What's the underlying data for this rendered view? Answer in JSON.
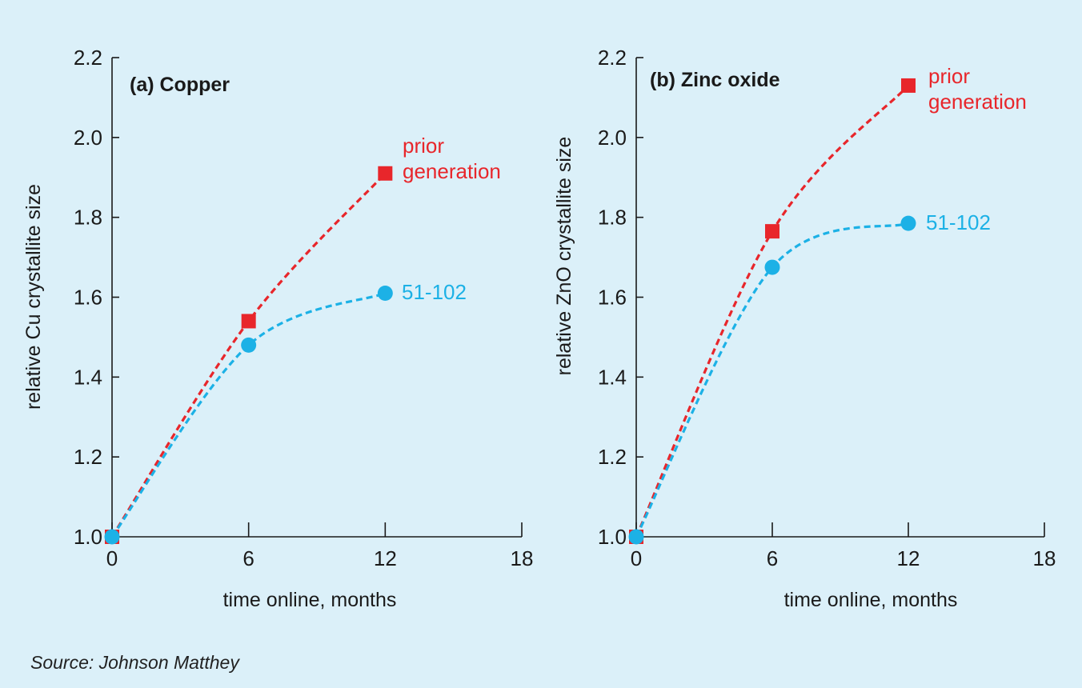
{
  "source": "Source: Johnson Matthey",
  "colors": {
    "prior": "#e8262b",
    "new": "#1cb1e6",
    "background": "#dbf0f9",
    "axis": "#1a1a1a"
  },
  "chart_data": [
    {
      "type": "line",
      "title": "(a) Copper",
      "xlabel": "time online, months",
      "ylabel": "relative Cu crystallite size",
      "xlim": [
        0,
        18
      ],
      "ylim": [
        1.0,
        2.2
      ],
      "xticks": [
        "0",
        "6",
        "12",
        "18"
      ],
      "yticks": [
        "1.0",
        "1.2",
        "1.4",
        "1.6",
        "1.8",
        "2.0",
        "2.2"
      ],
      "series": [
        {
          "name": "prior generation",
          "name_lines": [
            "prior",
            "generation"
          ],
          "marker": "square",
          "color": "#e8262b",
          "x": [
            0,
            6,
            12
          ],
          "y": [
            1.0,
            1.54,
            1.91
          ]
        },
        {
          "name": "51-102",
          "name_lines": [
            "51-102"
          ],
          "marker": "circle",
          "color": "#1cb1e6",
          "x": [
            0,
            6,
            12
          ],
          "y": [
            1.0,
            1.48,
            1.61
          ]
        }
      ]
    },
    {
      "type": "line",
      "title": "(b) Zinc oxide",
      "xlabel": "time online, months",
      "ylabel": "relative ZnO crystallite size",
      "xlim": [
        0,
        18
      ],
      "ylim": [
        1.0,
        2.2
      ],
      "xticks": [
        "0",
        "6",
        "12",
        "18"
      ],
      "yticks": [
        "1.0",
        "1.2",
        "1.4",
        "1.6",
        "1.8",
        "2.0",
        "2.2"
      ],
      "series": [
        {
          "name": "prior generation",
          "name_lines": [
            "prior",
            "generation"
          ],
          "marker": "square",
          "color": "#e8262b",
          "x": [
            0,
            6,
            12
          ],
          "y": [
            1.0,
            1.765,
            2.13
          ]
        },
        {
          "name": "51-102",
          "name_lines": [
            "51-102"
          ],
          "marker": "circle",
          "color": "#1cb1e6",
          "x": [
            0,
            6,
            12
          ],
          "y": [
            1.0,
            1.675,
            1.785
          ]
        }
      ]
    }
  ]
}
